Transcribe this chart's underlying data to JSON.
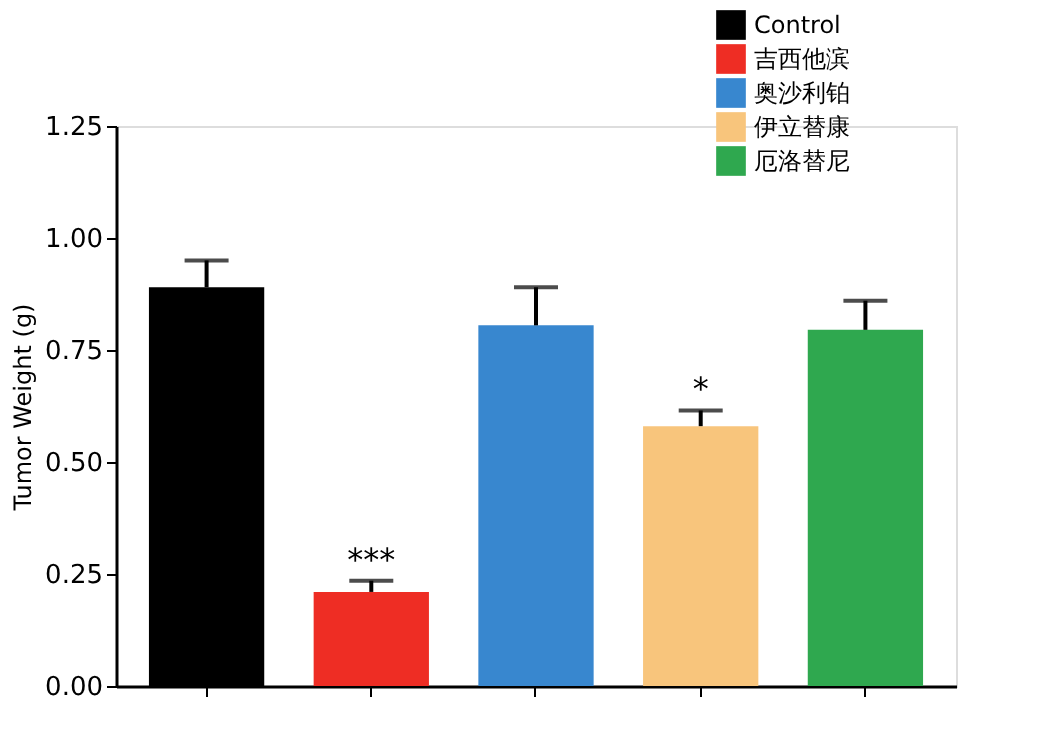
{
  "chart_data": {
    "type": "bar",
    "ylabel": "Tumor Weight (g)",
    "categories": [
      null,
      null,
      null,
      null,
      null
    ],
    "series": [
      {
        "name": "Control",
        "color": "#000000",
        "values": [
          0.89,
          null,
          null,
          null,
          null
        ],
        "errors": [
          [
            0.89,
            0.95
          ],
          null,
          null,
          null,
          null
        ]
      },
      {
        "name": "吉西他滨",
        "color": "#ee2d24",
        "values": [
          null,
          0.21,
          null,
          null,
          null
        ],
        "errors": [
          null,
          [
            0.21,
            0.235
          ],
          null,
          null,
          null
        ],
        "value_labels": [
          null,
          "***",
          null,
          null,
          null
        ]
      },
      {
        "name": "奥沙利铂",
        "color": "#3887cf",
        "values": [
          null,
          null,
          0.805,
          null,
          null
        ],
        "errors": [
          null,
          null,
          [
            0.805,
            0.89
          ],
          null,
          null
        ]
      },
      {
        "name": "伊立替康",
        "color": "#f8c57c",
        "values": [
          null,
          null,
          null,
          0.58,
          null
        ],
        "errors": [
          null,
          null,
          null,
          [
            0.58,
            0.615
          ],
          null
        ],
        "value_labels": [
          null,
          null,
          null,
          "*",
          null
        ]
      },
      {
        "name": "厄洛替尼",
        "color": "#2fa84f",
        "values": [
          null,
          null,
          null,
          null,
          0.795
        ],
        "errors": [
          null,
          null,
          null,
          null,
          [
            0.795,
            0.86
          ]
        ]
      }
    ],
    "ylim": [
      0,
      1.25
    ],
    "yticks": [
      {
        "value": 0,
        "label": "0.00"
      },
      {
        "value": 0.25,
        "label": "0.25"
      },
      {
        "value": 0.5,
        "label": "0.50"
      },
      {
        "value": 0.75,
        "label": "0.75"
      },
      {
        "value": 1,
        "label": "1.00"
      },
      {
        "value": 1.25,
        "label": "1.25"
      }
    ],
    "grid": false,
    "legend": "top right",
    "tick_labels": "y"
  }
}
